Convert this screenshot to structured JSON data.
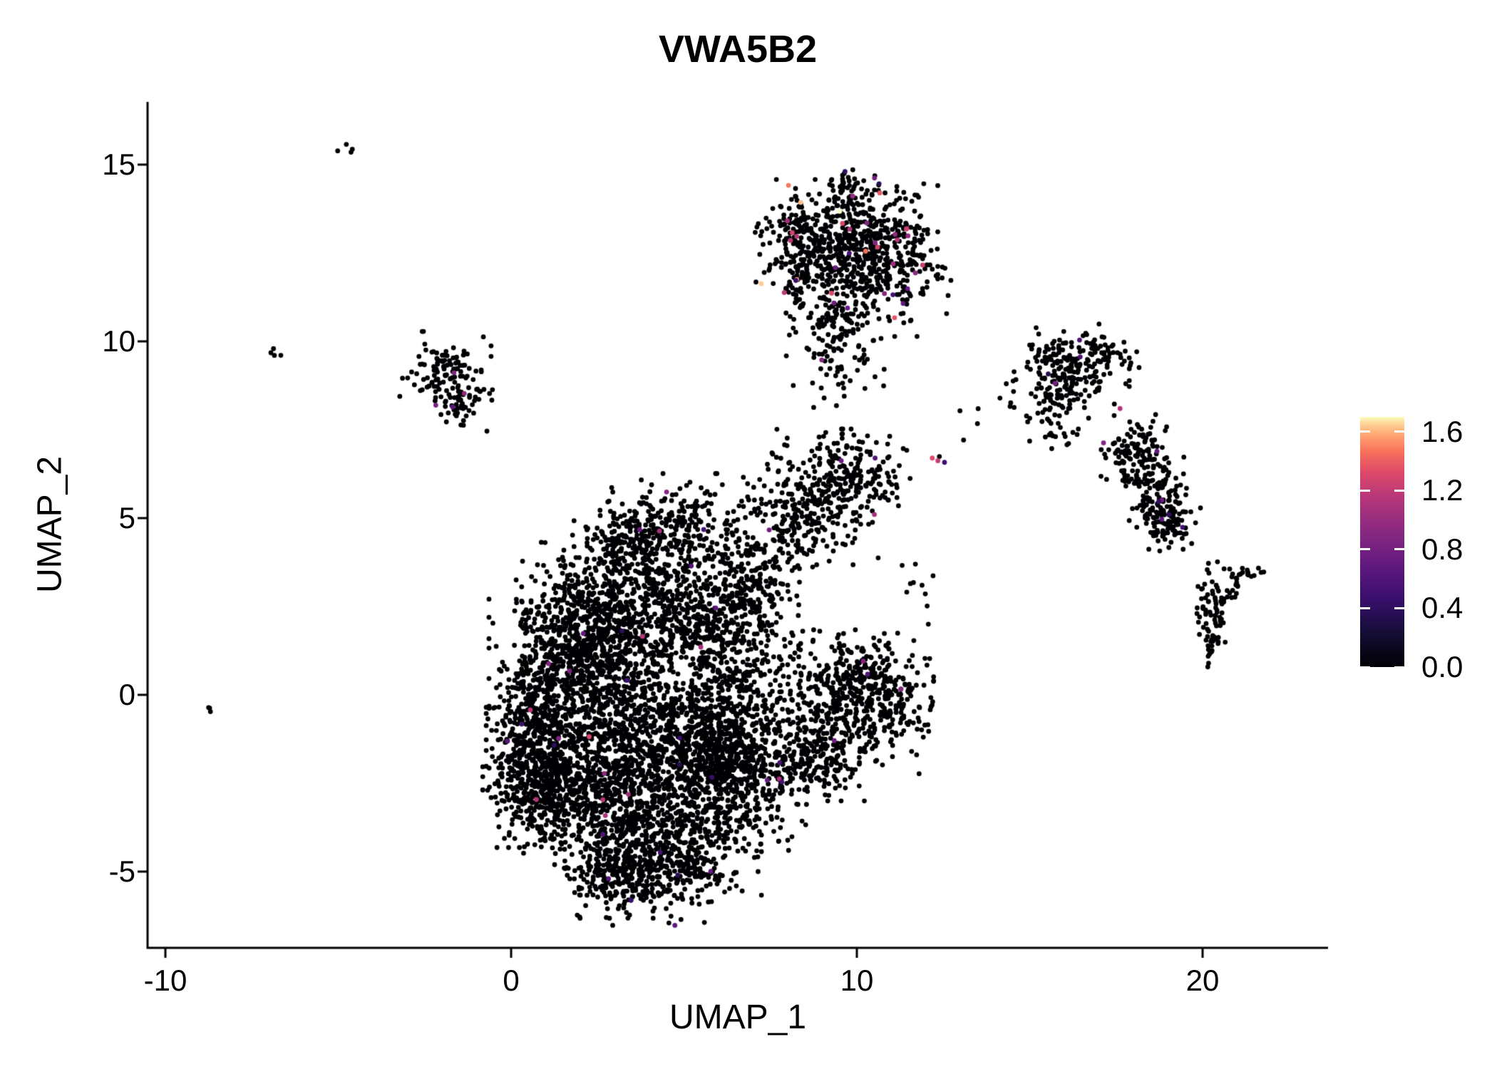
{
  "chart": {
    "title": "VWA5B2",
    "x_label": "UMAP_1",
    "y_label": "UMAP_2"
  },
  "chart_data": {
    "type": "scatter",
    "title": "VWA5B2",
    "xlabel": "UMAP_1",
    "ylabel": "UMAP_2",
    "xlim": [
      -10.5,
      23.6
    ],
    "ylim": [
      -7.2,
      16.8
    ],
    "x_ticks": [
      -10,
      0,
      10,
      20
    ],
    "y_ticks": [
      -5,
      0,
      5,
      10,
      15
    ],
    "grid": false,
    "background": "#ffffff",
    "axis_color": "#000000",
    "point_radius_px": 3.4,
    "legend": {
      "position": "right",
      "label_values": [
        "1.6",
        "1.2",
        "0.8",
        "0.4",
        "0.0"
      ],
      "scale_min": 0.0,
      "scale_max": 1.6,
      "colormap_name": "magma",
      "colormap_stops": [
        [
          0.0,
          "#000004"
        ],
        [
          0.14,
          "#150e37"
        ],
        [
          0.28,
          "#3b0f70"
        ],
        [
          0.42,
          "#651a80"
        ],
        [
          0.55,
          "#8c2981"
        ],
        [
          0.68,
          "#b73779"
        ],
        [
          0.78,
          "#de4968"
        ],
        [
          0.86,
          "#f7705c"
        ],
        [
          0.92,
          "#fe9f6d"
        ],
        [
          0.97,
          "#fecf92"
        ],
        [
          1.0,
          "#fcfdbf"
        ]
      ]
    },
    "clusters": [
      {
        "region": "main-left-center",
        "n": 700,
        "cx": 2.0,
        "cy": 0.3,
        "sx": 1.1,
        "sy": 1.4,
        "ef": 0.006,
        "em": 1.2
      },
      {
        "region": "main-center",
        "n": 650,
        "cx": 4.0,
        "cy": -0.8,
        "sx": 1.2,
        "sy": 1.2,
        "ef": 0.006,
        "em": 1.2
      },
      {
        "region": "main-center-right-low",
        "n": 500,
        "cx": 5.6,
        "cy": -2.2,
        "sx": 1.0,
        "sy": 1.0,
        "ef": 0.006,
        "em": 1.2
      },
      {
        "region": "main-low-left",
        "n": 450,
        "cx": 3.0,
        "cy": -2.8,
        "sx": 1.1,
        "sy": 0.9,
        "ef": 0.008,
        "em": 1.3
      },
      {
        "region": "main-bottom",
        "n": 420,
        "cx": 4.6,
        "cy": -4.6,
        "sx": 1.1,
        "sy": 0.8,
        "ef": 0.006,
        "em": 1.2
      },
      {
        "region": "main-bottom-tip",
        "n": 260,
        "cx": 3.2,
        "cy": -5.0,
        "sx": 0.8,
        "sy": 0.55,
        "ef": 0.01,
        "em": 1.3
      },
      {
        "region": "main-left-edge",
        "n": 420,
        "cx": 0.6,
        "cy": -1.2,
        "sx": 0.55,
        "sy": 1.3,
        "ef": 0.006,
        "em": 1.2
      },
      {
        "region": "main-lower-left",
        "n": 350,
        "cx": 1.1,
        "cy": -2.6,
        "sx": 0.8,
        "sy": 0.8,
        "ef": 0.005,
        "em": 1.1
      },
      {
        "region": "main-upper-band",
        "n": 500,
        "cx": 3.6,
        "cy": 2.6,
        "sx": 1.5,
        "sy": 0.8,
        "ef": 0.006,
        "em": 1.0
      },
      {
        "region": "main-mid-band",
        "n": 300,
        "cx": 2.4,
        "cy": 1.6,
        "sx": 0.9,
        "sy": 0.8,
        "ef": 0.005,
        "em": 1.0
      },
      {
        "region": "main-top-lobe",
        "n": 330,
        "cx": 4.7,
        "cy": 4.7,
        "sx": 1.2,
        "sy": 0.65,
        "ef": 0.008,
        "em": 1.0
      },
      {
        "region": "main-top-lobe-left",
        "n": 120,
        "cx": 3.4,
        "cy": 4.2,
        "sx": 0.5,
        "sy": 0.5,
        "ef": 0.008,
        "em": 0.9
      },
      {
        "region": "main-right-band",
        "n": 420,
        "cx": 6.4,
        "cy": 0.3,
        "sx": 0.8,
        "sy": 1.6,
        "ef": 0.007,
        "em": 1.1
      },
      {
        "region": "main-right-bottom",
        "n": 300,
        "cx": 6.6,
        "cy": -2.0,
        "sx": 0.8,
        "sy": 1.0,
        "ef": 0.006,
        "em": 1.1
      },
      {
        "region": "main-connect",
        "n": 200,
        "cx": 5.5,
        "cy": 1.8,
        "sx": 0.9,
        "sy": 0.7,
        "ef": 0.005,
        "em": 1.0
      },
      {
        "region": "main-upper-right-nub",
        "n": 150,
        "cx": 6.9,
        "cy": 3.2,
        "sx": 0.6,
        "sy": 0.6,
        "ef": 0.008,
        "em": 0.9
      },
      {
        "region": "right-lower-blob",
        "n": 380,
        "cx": 9.4,
        "cy": -0.6,
        "sx": 1.0,
        "sy": 1.0,
        "ef": 0.008,
        "em": 1.0
      },
      {
        "region": "right-lower-top",
        "n": 200,
        "cx": 10.3,
        "cy": 0.4,
        "sx": 0.8,
        "sy": 0.6,
        "ef": 0.008,
        "em": 1.0
      },
      {
        "region": "right-lower-bottom",
        "n": 150,
        "cx": 8.6,
        "cy": -1.9,
        "sx": 0.7,
        "sy": 0.5,
        "ef": 0.006,
        "em": 1.0
      },
      {
        "region": "right-lower-tip",
        "n": 60,
        "cx": 11.2,
        "cy": -0.4,
        "sx": 0.45,
        "sy": 0.5,
        "ef": 0.03,
        "em": 1.0
      },
      {
        "region": "right-mid-blob",
        "n": 260,
        "cx": 9.0,
        "cy": 5.6,
        "sx": 0.9,
        "sy": 0.8,
        "ef": 0.01,
        "em": 1.0
      },
      {
        "region": "right-mid-east",
        "n": 120,
        "cx": 10.1,
        "cy": 6.3,
        "sx": 0.6,
        "sy": 0.5,
        "ef": 0.01,
        "em": 1.0
      },
      {
        "region": "right-mid-south",
        "n": 80,
        "cx": 8.2,
        "cy": 4.8,
        "sx": 0.5,
        "sy": 0.5,
        "ef": 0.01,
        "em": 0.9
      },
      {
        "region": "top-cluster-core",
        "n": 420,
        "cx": 9.7,
        "cy": 12.7,
        "sx": 1.1,
        "sy": 0.8,
        "ef": 0.035,
        "em": 1.6
      },
      {
        "region": "top-cluster-east",
        "n": 250,
        "cx": 10.8,
        "cy": 12.3,
        "sx": 0.8,
        "sy": 0.9,
        "ef": 0.03,
        "em": 1.4
      },
      {
        "region": "top-cluster-west",
        "n": 150,
        "cx": 8.6,
        "cy": 12.9,
        "sx": 0.6,
        "sy": 0.7,
        "ef": 0.04,
        "em": 1.65
      },
      {
        "region": "top-cluster-tail",
        "n": 130,
        "cx": 9.4,
        "cy": 10.6,
        "sx": 0.6,
        "sy": 0.8,
        "ef": 0.02,
        "em": 1.2
      },
      {
        "region": "top-cluster-tip",
        "n": 40,
        "cx": 9.8,
        "cy": 14.2,
        "sx": 0.3,
        "sy": 0.35,
        "ef": 0.05,
        "em": 1.0
      },
      {
        "region": "top-cluster-streak",
        "n": 35,
        "cx": 8.15,
        "cy": 11.5,
        "sx": 0.22,
        "sy": 0.55,
        "ef": 0.06,
        "em": 1.65
      },
      {
        "region": "top-cluster-below",
        "n": 25,
        "cx": 9.6,
        "cy": 9.0,
        "sx": 0.5,
        "sy": 0.6,
        "ef": 0.0,
        "em": 0
      },
      {
        "region": "upper-left-small-n",
        "n": 110,
        "cx": -1.9,
        "cy": 9.2,
        "sx": 0.55,
        "sy": 0.45,
        "ef": 0.01,
        "em": 0.9
      },
      {
        "region": "upper-left-small-s",
        "n": 50,
        "cx": -1.5,
        "cy": 8.3,
        "sx": 0.4,
        "sy": 0.35,
        "ef": 0.04,
        "em": 0.9
      },
      {
        "region": "far-right-top",
        "n": 170,
        "cx": 16.2,
        "cy": 9.3,
        "sx": 0.7,
        "sy": 0.5,
        "ef": 0.03,
        "em": 1.1
      },
      {
        "region": "far-right-top-sw",
        "n": 70,
        "cx": 15.8,
        "cy": 8.3,
        "sx": 0.4,
        "sy": 0.5,
        "ef": 0.02,
        "em": 1.0
      },
      {
        "region": "far-right-top-e",
        "n": 40,
        "cx": 17.2,
        "cy": 9.5,
        "sx": 0.5,
        "sy": 0.3,
        "ef": 0.02,
        "em": 1.0
      },
      {
        "region": "far-right-mid-n",
        "n": 110,
        "cx": 18.0,
        "cy": 6.9,
        "sx": 0.4,
        "sy": 0.5,
        "ef": 0.02,
        "em": 1.1
      },
      {
        "region": "far-right-mid-c",
        "n": 110,
        "cx": 18.6,
        "cy": 5.8,
        "sx": 0.4,
        "sy": 0.5,
        "ef": 0.03,
        "em": 1.1
      },
      {
        "region": "far-right-mid-s",
        "n": 90,
        "cx": 19.1,
        "cy": 5.0,
        "sx": 0.35,
        "sy": 0.4,
        "ef": 0.03,
        "em": 1.1
      },
      {
        "region": "bottom-right-small",
        "n": 70,
        "cx": 20.4,
        "cy": 2.6,
        "sx": 0.35,
        "sy": 0.5,
        "ef": 0.0,
        "em": 0
      },
      {
        "region": "bottom-right-streak-down",
        "n": 25,
        "cx": 20.3,
        "cy": 1.5,
        "sx": 0.12,
        "sy": 0.35,
        "ef": 0.0,
        "em": 0
      },
      {
        "region": "bottom-right-streak-diag",
        "n": 18,
        "cx": 21.25,
        "cy": 3.45,
        "sx": 0.28,
        "sy": 0.12,
        "ef": 0.0,
        "em": 0
      },
      {
        "region": "bridge-mid",
        "n": 10,
        "cx": 11.6,
        "cy": 3.2,
        "sx": 0.3,
        "sy": 0.5,
        "ef": 0.0,
        "em": 0
      },
      {
        "region": "bridge-right",
        "n": 12,
        "cx": 14.2,
        "cy": 7.6,
        "sx": 0.6,
        "sy": 0.5,
        "ef": 0.0,
        "em": 0
      },
      {
        "region": "bridge-right-s",
        "n": 8,
        "cx": 15.8,
        "cy": 7.2,
        "sx": 0.3,
        "sy": 0.3,
        "ef": 0.0,
        "em": 0
      },
      {
        "region": "isolated-orange",
        "n": 4,
        "cx": 12.6,
        "cy": 6.6,
        "sx": 0.2,
        "sy": 0.1,
        "ef": 0.4,
        "em": 1.3
      },
      {
        "region": "outlier-left",
        "n": 3,
        "cx": -8.7,
        "cy": -0.4,
        "sx": 0.12,
        "sy": 0.08,
        "ef": 0.0,
        "em": 0
      },
      {
        "region": "outlier-upper-left",
        "n": 4,
        "cx": -6.8,
        "cy": 9.7,
        "sx": 0.15,
        "sy": 0.1,
        "ef": 0.0,
        "em": 0
      },
      {
        "region": "outlier-top-left",
        "n": 4,
        "cx": -4.7,
        "cy": 15.4,
        "sx": 0.14,
        "sy": 0.1,
        "ef": 0.0,
        "em": 0
      }
    ]
  }
}
